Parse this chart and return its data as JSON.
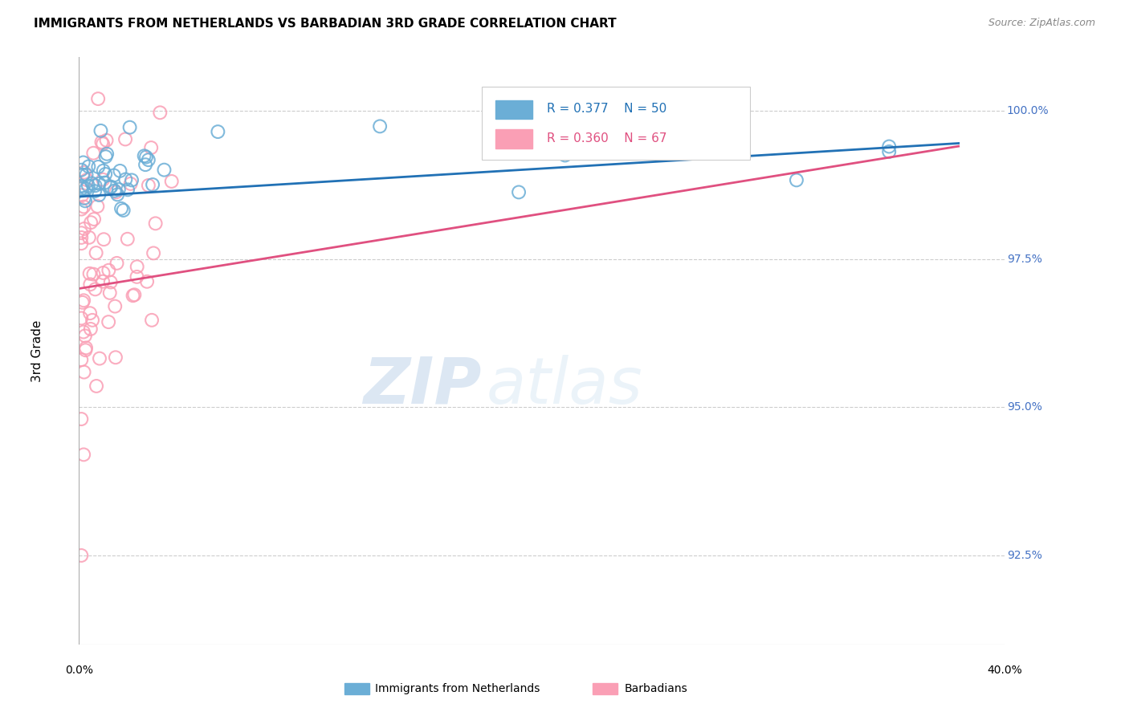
{
  "title": "IMMIGRANTS FROM NETHERLANDS VS BARBADIAN 3RD GRADE CORRELATION CHART",
  "source": "Source: ZipAtlas.com",
  "ylabel": "3rd Grade",
  "y_ticks": [
    92.5,
    95.0,
    97.5,
    100.0
  ],
  "watermark_zip": "ZIP",
  "watermark_atlas": "atlas",
  "blue_R": 0.377,
  "blue_N": 50,
  "pink_R": 0.36,
  "pink_N": 67,
  "blue_color": "#6baed6",
  "pink_color": "#fa9fb5",
  "blue_line_color": "#2171b5",
  "pink_line_color": "#e05080",
  "legend_label_blue": "Immigrants from Netherlands",
  "legend_label_pink": "Barbadians"
}
